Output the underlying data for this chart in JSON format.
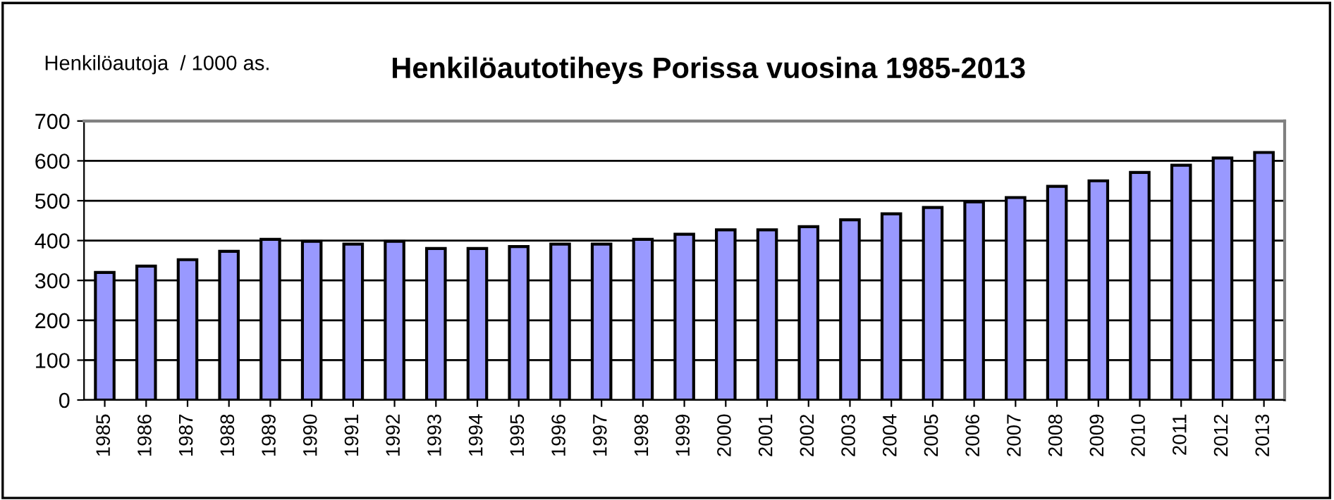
{
  "chart_data": {
    "type": "bar",
    "title": "Henkilöautotiheys Porissa vuosina 1985-2013",
    "ylabel": "Henkilöautoja  / 1000 as.",
    "categories": [
      "1985",
      "1986",
      "1987",
      "1988",
      "1989",
      "1990",
      "1991",
      "1992",
      "1993",
      "1994",
      "1995",
      "1996",
      "1997",
      "1998",
      "1999",
      "2000",
      "2001",
      "2002",
      "2003",
      "2004",
      "2005",
      "2006",
      "2007",
      "2008",
      "2009",
      "2010",
      "2011",
      "2012",
      "2013"
    ],
    "values": [
      320,
      336,
      352,
      373,
      403,
      398,
      391,
      398,
      380,
      380,
      385,
      391,
      391,
      403,
      416,
      427,
      427,
      435,
      452,
      467,
      483,
      497,
      508,
      536,
      550,
      571,
      589,
      607,
      621
    ],
    "color": "#9999ff",
    "ylim": [
      0,
      700
    ],
    "yticks": [
      0,
      100,
      200,
      300,
      400,
      500,
      600,
      700
    ],
    "grid": "y",
    "legend": false
  }
}
